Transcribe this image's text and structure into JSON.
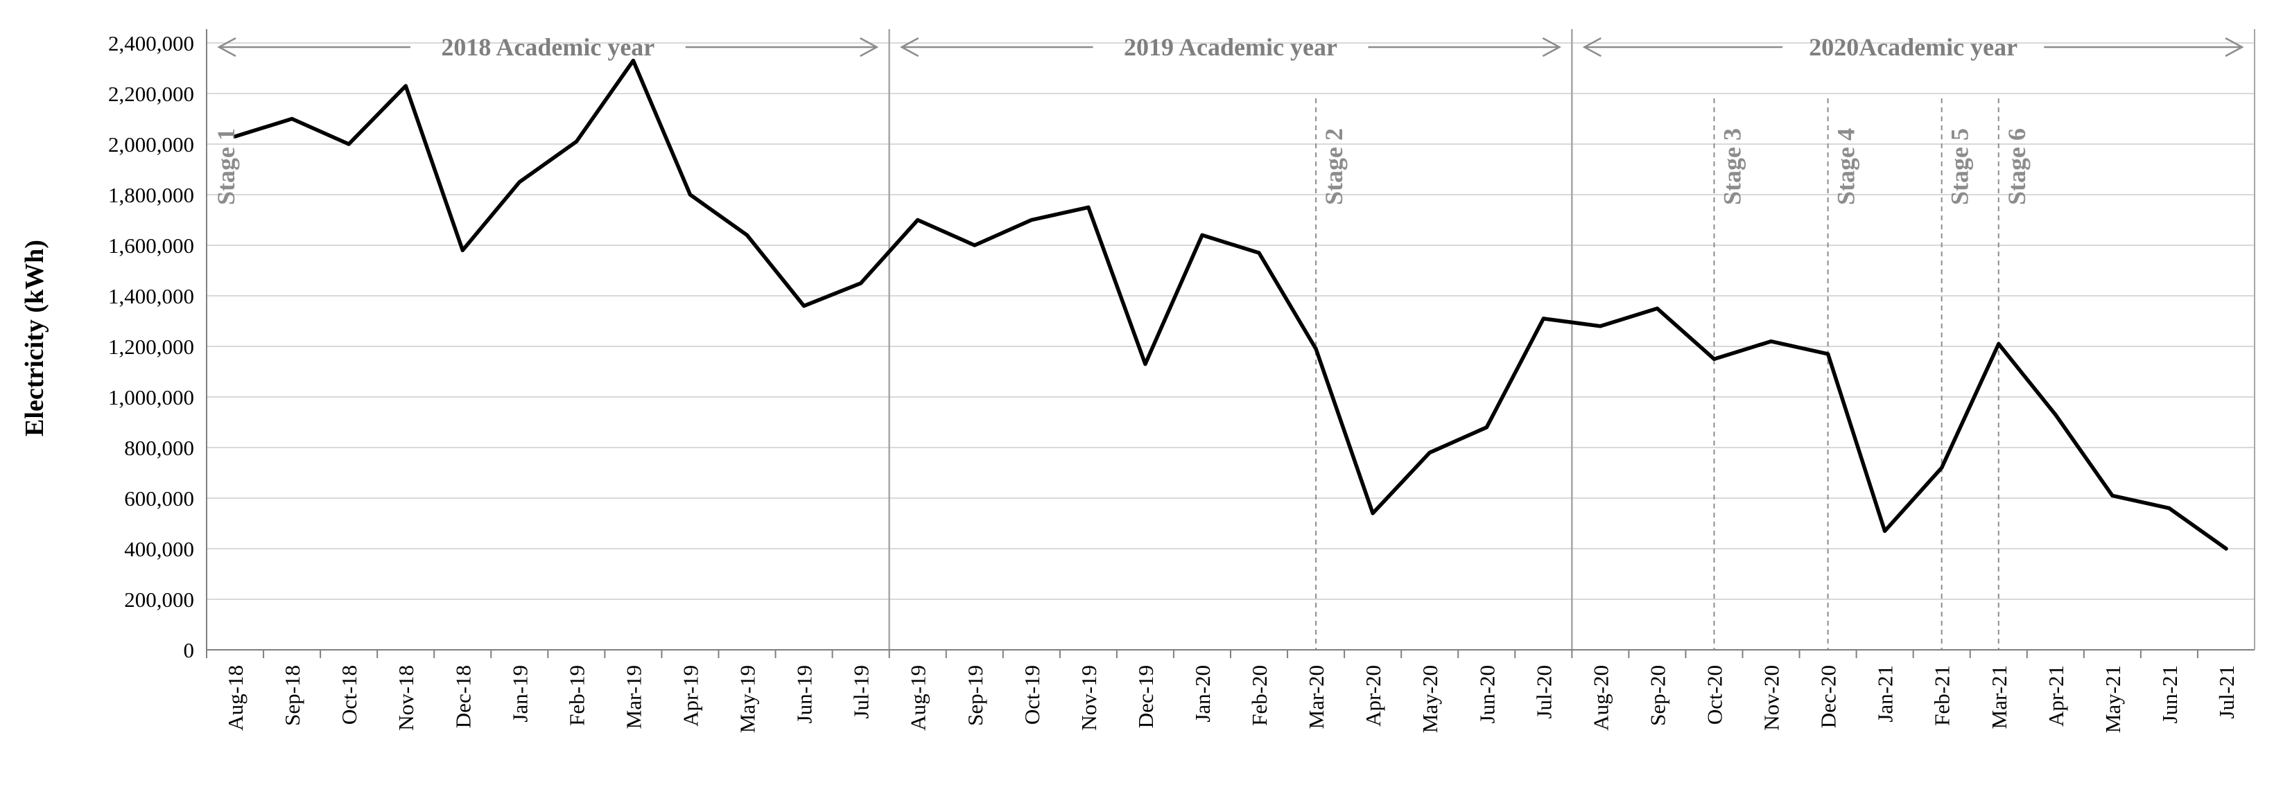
{
  "chart_data": {
    "type": "line",
    "title": "",
    "xlabel": "",
    "ylabel": "Electricity (kWh)",
    "ylim": [
      0,
      2400000
    ],
    "y_ticks": [
      0,
      200000,
      400000,
      600000,
      800000,
      1000000,
      1200000,
      1400000,
      1600000,
      1800000,
      2000000,
      2200000,
      2400000
    ],
    "y_tick_labels": [
      "0",
      "200,000",
      "400,000",
      "600,000",
      "800,000",
      "1,000,000",
      "1,200,000",
      "1,400,000",
      "1,600,000",
      "1,800,000",
      "2,000,000",
      "2,200,000",
      "2,400,000"
    ],
    "grid": true,
    "categories": [
      "Aug-18",
      "Sep-18",
      "Oct-18",
      "Nov-18",
      "Dec-18",
      "Jan-19",
      "Feb-19",
      "Mar-19",
      "Apr-19",
      "May-19",
      "Jun-19",
      "Jul-19",
      "Aug-19",
      "Sep-19",
      "Oct-19",
      "Nov-19",
      "Dec-19",
      "Jan-20",
      "Feb-20",
      "Mar-20",
      "Apr-20",
      "May-20",
      "Jun-20",
      "Jul-20",
      "Aug-20",
      "Sep-20",
      "Oct-20",
      "Nov-20",
      "Dec-20",
      "Jan-21",
      "Feb-21",
      "Mar-21",
      "Apr-21",
      "May-21",
      "Jun-21",
      "Jul-21"
    ],
    "series": [
      {
        "name": "",
        "color": "#000000",
        "values": [
          2030000,
          2100000,
          2000000,
          2230000,
          1580000,
          1850000,
          2010000,
          2330000,
          1800000,
          1640000,
          1360000,
          1450000,
          1700000,
          1600000,
          1700000,
          1750000,
          1130000,
          1640000,
          1570000,
          1190000,
          540000,
          780000,
          880000,
          1310000,
          1280000,
          1350000,
          1150000,
          1220000,
          1170000,
          470000,
          720000,
          1210000,
          930000,
          610000,
          560000,
          400000
        ]
      }
    ],
    "year_spans": [
      {
        "label": "2018 Academic year",
        "start": "Aug-18",
        "end": "Jul-19"
      },
      {
        "label": "2019 Academic year",
        "start": "Aug-19",
        "end": "Jul-20"
      },
      {
        "label": "2020Academic year",
        "start": "Aug-20",
        "end": "Jul-21"
      }
    ],
    "stages": [
      {
        "label": "Stage 1",
        "at": "Aug-18"
      },
      {
        "label": "Stage 2",
        "at": "Mar-20"
      },
      {
        "label": "Stage 3",
        "at": "Oct-20"
      },
      {
        "label": "Stage 4",
        "at": "Dec-20"
      },
      {
        "label": "Stage 5",
        "at": "Feb-21"
      },
      {
        "label": "Stage 6",
        "at": "Mar-21"
      }
    ],
    "colors": {
      "line": "#000000",
      "grid": "#d9d9d9",
      "divider": "#a6a6a6",
      "annotation": "#8c8c8c"
    }
  }
}
